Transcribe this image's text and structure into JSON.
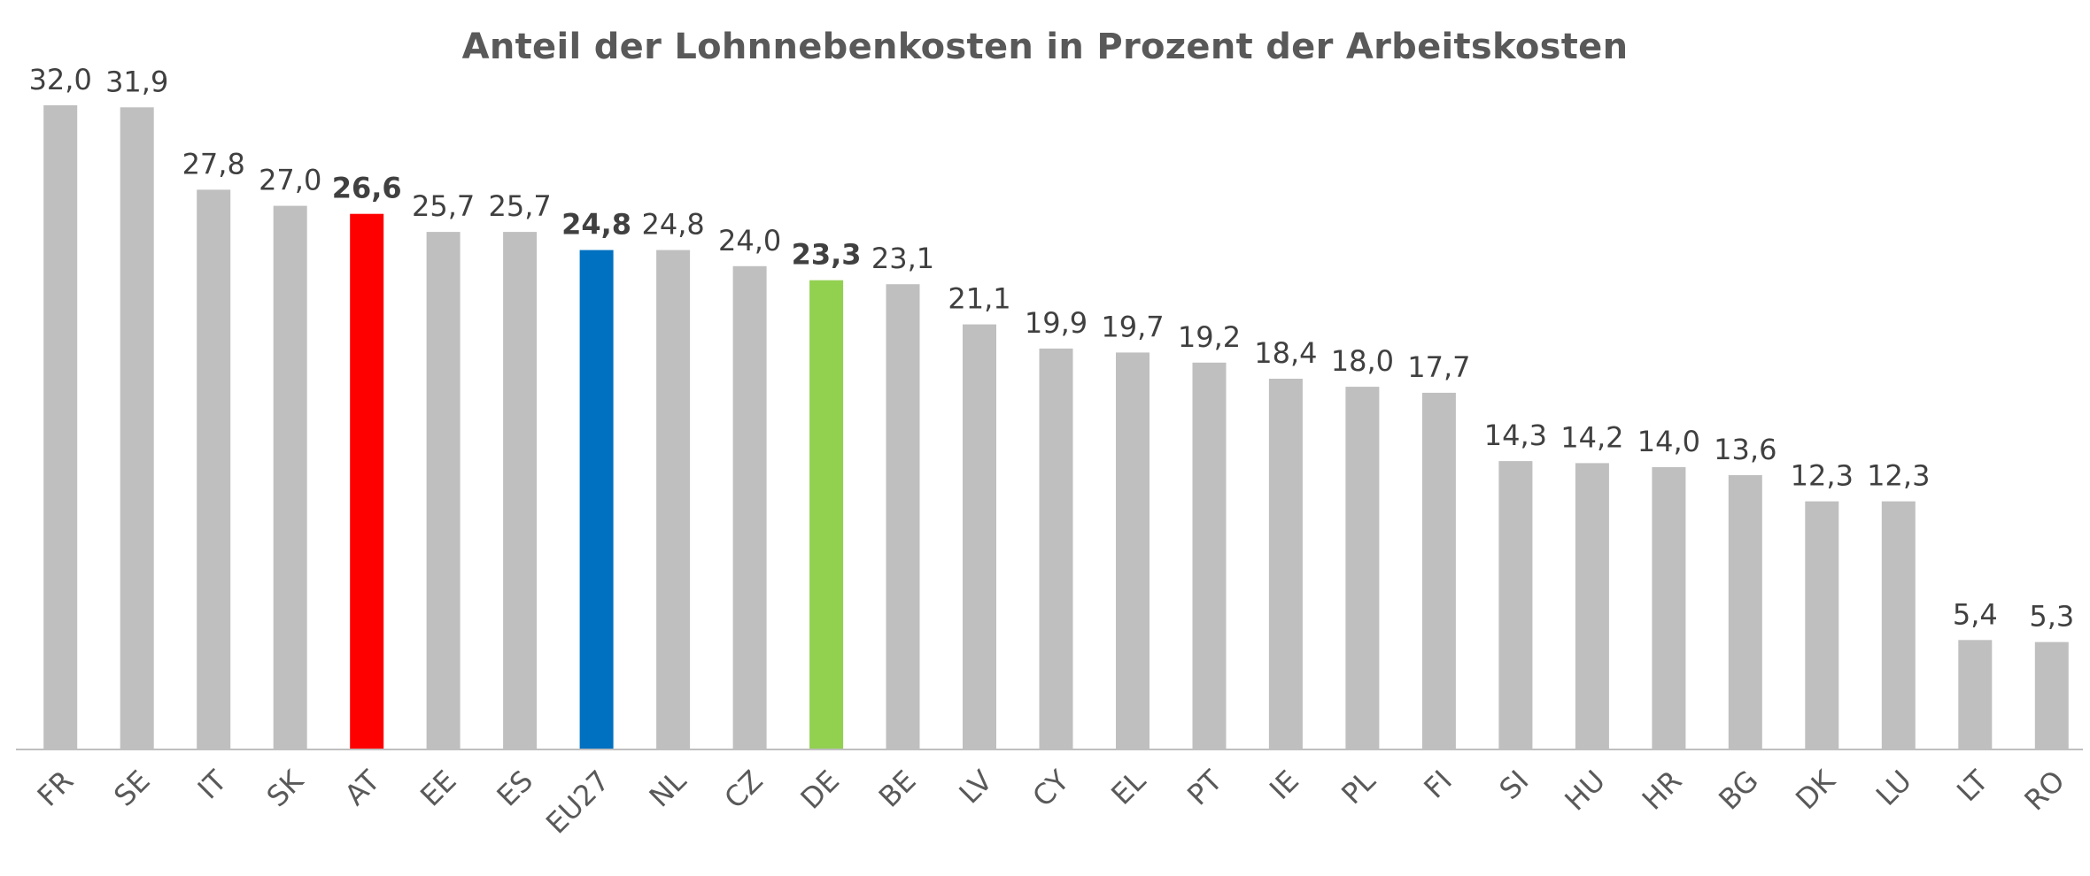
{
  "chart_data": {
    "type": "bar",
    "title": "Anteil der Lohnnebenkosten in Prozent der Arbeitskosten",
    "xlabel": "",
    "ylabel": "",
    "ylim": [
      0,
      32.0
    ],
    "grid": false,
    "legend": "none",
    "categories": [
      "FR",
      "SE",
      "IT",
      "SK",
      "AT",
      "EE",
      "ES",
      "EU27",
      "NL",
      "CZ",
      "DE",
      "BE",
      "LV",
      "CY",
      "EL",
      "PT",
      "IE",
      "PL",
      "FI",
      "SI",
      "HU",
      "HR",
      "BG",
      "DK",
      "LU",
      "LT",
      "RO"
    ],
    "values": [
      32.0,
      31.9,
      27.8,
      27.0,
      26.6,
      25.7,
      25.7,
      24.8,
      24.8,
      24.0,
      23.3,
      23.1,
      21.1,
      19.9,
      19.7,
      19.2,
      18.4,
      18.0,
      17.7,
      14.3,
      14.2,
      14.0,
      13.6,
      12.3,
      12.3,
      5.4,
      5.3
    ],
    "value_labels": [
      "32,0",
      "31,9",
      "27,8",
      "27,0",
      "26,6",
      "25,7",
      "25,7",
      "24,8",
      "24,8",
      "24,0",
      "23,3",
      "23,1",
      "21,1",
      "19,9",
      "19,7",
      "19,2",
      "18,4",
      "18,0",
      "17,7",
      "14,3",
      "14,2",
      "14,0",
      "13,6",
      "12,3",
      "12,3",
      "5,4",
      "5,3"
    ],
    "colors": {
      "default": "#bfbfbf",
      "AT": "#ff0000",
      "EU27": "#0070c0",
      "DE": "#92d050",
      "axis": "#bfbfbf"
    },
    "bold_categories": [
      "AT",
      "EU27",
      "DE"
    ]
  }
}
